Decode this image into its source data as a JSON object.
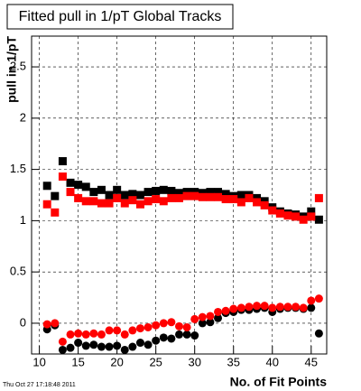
{
  "chart_data": {
    "type": "scatter",
    "title": "Fitted pull in 1/pT  Global Tracks",
    "x_label": "No. of Fit Points",
    "y_label": "pull in 1/pT",
    "footer": "Thu Oct 27 17:18:48 2011",
    "xlim": [
      9,
      47
    ],
    "ylim": [
      -0.3,
      2.8
    ],
    "xticks": [
      10,
      15,
      20,
      25,
      30,
      35,
      40,
      45
    ],
    "yticks": [
      0,
      0.5,
      1,
      1.5,
      2,
      2.5
    ],
    "grid": true,
    "x": [
      11,
      12,
      13,
      14,
      15,
      16,
      17,
      18,
      19,
      20,
      21,
      22,
      23,
      24,
      25,
      26,
      27,
      28,
      29,
      30,
      31,
      32,
      33,
      34,
      35,
      36,
      37,
      38,
      39,
      40,
      41,
      42,
      43,
      44,
      45,
      46
    ],
    "series": [
      {
        "color": "#000000",
        "marker": "square",
        "values": [
          1.34,
          1.24,
          1.58,
          1.37,
          1.35,
          1.33,
          1.28,
          1.3,
          1.25,
          1.3,
          1.25,
          1.26,
          1.25,
          1.28,
          1.29,
          1.3,
          1.29,
          1.27,
          1.28,
          1.28,
          1.27,
          1.28,
          1.28,
          1.26,
          1.24,
          1.25,
          1.25,
          1.22,
          1.19,
          1.13,
          1.09,
          1.07,
          1.06,
          1.04,
          1.09,
          1.01
        ]
      },
      {
        "color": "#ff0000",
        "marker": "square",
        "values": [
          1.16,
          1.08,
          1.43,
          1.28,
          1.22,
          1.19,
          1.19,
          1.17,
          1.17,
          1.22,
          1.17,
          1.2,
          1.16,
          1.19,
          1.21,
          1.19,
          1.22,
          1.22,
          1.24,
          1.24,
          1.23,
          1.23,
          1.23,
          1.21,
          1.21,
          1.18,
          1.22,
          1.18,
          1.15,
          1.1,
          1.07,
          1.05,
          1.04,
          1.01,
          1.04,
          1.22
        ]
      },
      {
        "color": "#000000",
        "marker": "circle",
        "values": [
          -0.06,
          -0.02,
          -0.26,
          -0.24,
          -0.19,
          -0.22,
          -0.21,
          -0.23,
          -0.23,
          -0.22,
          -0.26,
          -0.23,
          -0.19,
          -0.21,
          -0.17,
          -0.14,
          -0.15,
          -0.11,
          -0.11,
          -0.12,
          0.0,
          0.01,
          0.05,
          0.1,
          0.11,
          0.13,
          0.13,
          0.14,
          0.15,
          0.11,
          0.14,
          0.15,
          0.15,
          0.14,
          0.15,
          -0.1
        ]
      },
      {
        "color": "#ff0000",
        "marker": "circle",
        "values": [
          -0.01,
          0.0,
          -0.18,
          -0.11,
          -0.1,
          -0.11,
          -0.1,
          -0.11,
          -0.07,
          -0.07,
          -0.11,
          -0.07,
          -0.05,
          -0.04,
          -0.02,
          0.0,
          0.01,
          -0.03,
          -0.04,
          0.04,
          0.06,
          0.07,
          0.11,
          0.12,
          0.14,
          0.15,
          0.16,
          0.17,
          0.17,
          0.15,
          0.16,
          0.16,
          0.16,
          0.15,
          0.22,
          0.24
        ]
      }
    ]
  }
}
